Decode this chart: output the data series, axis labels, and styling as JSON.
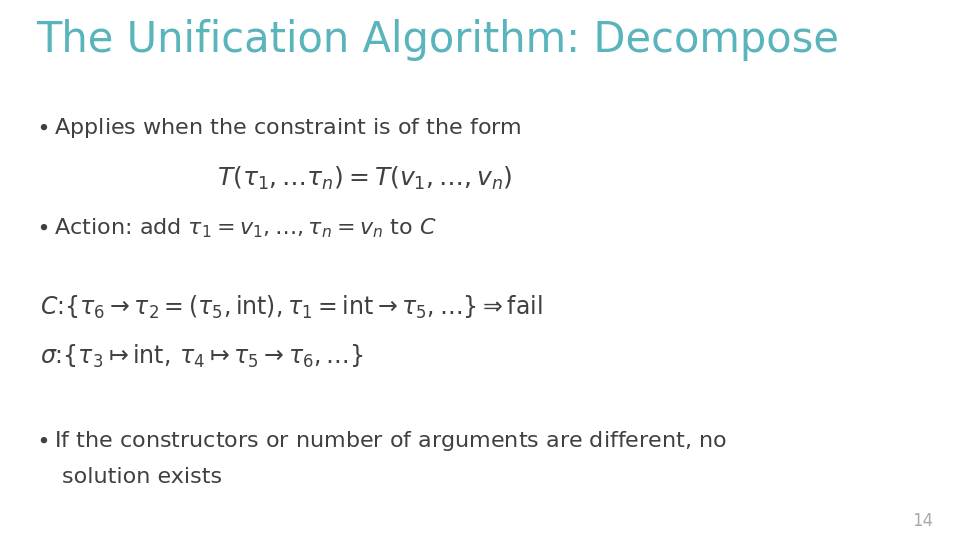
{
  "title": "The Unification Algorithm: Decompose",
  "title_color": "#5ab4bc",
  "title_fontsize": 30,
  "background_color": "#ffffff",
  "text_color": "#404040",
  "slide_number": "14",
  "slide_number_color": "#aaaaaa",
  "bullet1_text": "Applies when the constraint is of the form",
  "formula1": "$T(\\tau_1, \\ldots \\tau_n) = T(v_1, \\ldots, v_n)$",
  "bullet2": "Action: add $\\tau_1 = v_1, \\ldots, \\tau_n = v_n$ to $C$",
  "example_C": "$C\\colon \\{\\tau_6 \\to \\tau_2 = (\\tau_5, \\mathrm{int}), \\tau_1 = \\mathrm{int} \\to \\tau_5, \\ldots\\} \\Rightarrow \\mathrm{fail}$",
  "example_sigma": "$\\sigma\\colon\\{\\tau_3 \\mapsto \\mathrm{int},\\, \\tau_4 \\mapsto \\tau_5 \\to \\tau_6, \\ldots\\}$",
  "bullet3_line1": "If the constructors or number of arguments are different, no",
  "bullet3_line2": "solution exists",
  "body_fontsize": 16,
  "formula_fontsize": 18,
  "example_fontsize": 17
}
